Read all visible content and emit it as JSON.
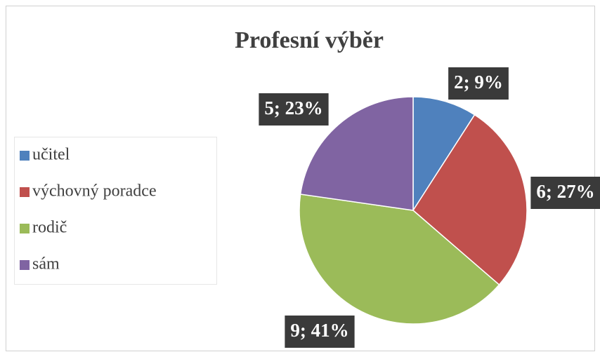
{
  "chart_data": {
    "type": "pie",
    "title": "Profesní výběr",
    "categories": [
      "učitel",
      "výchovný poradce",
      "rodič",
      "sám"
    ],
    "values": [
      2,
      6,
      9,
      5
    ],
    "value_labels": [
      "2; 9%",
      "6; 27%",
      "9; 41%",
      "5; 23%"
    ],
    "colors": [
      "#4f81bd",
      "#c0504d",
      "#9bbb59",
      "#8064a2"
    ],
    "legend": "left"
  }
}
